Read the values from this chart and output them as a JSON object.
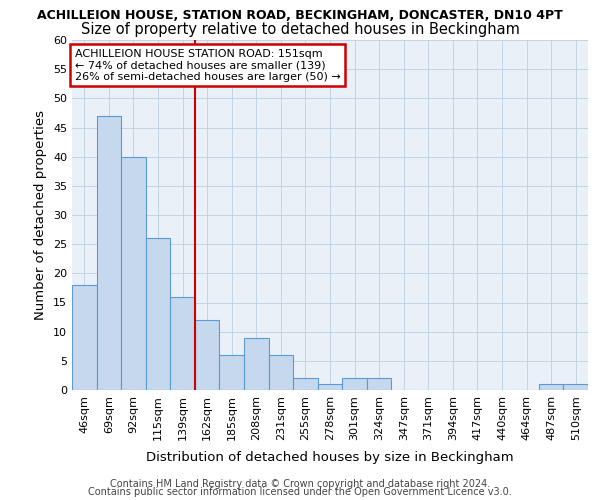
{
  "title1": "ACHILLEION HOUSE, STATION ROAD, BECKINGHAM, DONCASTER, DN10 4PT",
  "title2": "Size of property relative to detached houses in Beckingham",
  "xlabel": "Distribution of detached houses by size in Beckingham",
  "ylabel": "Number of detached properties",
  "categories": [
    "46sqm",
    "69sqm",
    "92sqm",
    "115sqm",
    "139sqm",
    "162sqm",
    "185sqm",
    "208sqm",
    "231sqm",
    "255sqm",
    "278sqm",
    "301sqm",
    "324sqm",
    "347sqm",
    "371sqm",
    "394sqm",
    "417sqm",
    "440sqm",
    "464sqm",
    "487sqm",
    "510sqm"
  ],
  "values": [
    18,
    47,
    40,
    26,
    16,
    12,
    6,
    9,
    6,
    2,
    1,
    2,
    2,
    0,
    0,
    0,
    0,
    0,
    0,
    1,
    1
  ],
  "bar_color": "#c5d8ed",
  "bar_edge_color": "#5b9bd5",
  "vline_x": 4.5,
  "vline_color": "#cc0000",
  "annotation_line1": "ACHILLEION HOUSE STATION ROAD: 151sqm",
  "annotation_line2": "← 74% of detached houses are smaller (139)",
  "annotation_line3": "26% of semi-detached houses are larger (50) →",
  "annotation_box_color": "#ffffff",
  "annotation_box_edge": "#cc0000",
  "ylim": [
    0,
    60
  ],
  "yticks": [
    0,
    5,
    10,
    15,
    20,
    25,
    30,
    35,
    40,
    45,
    50,
    55,
    60
  ],
  "footer1": "Contains HM Land Registry data © Crown copyright and database right 2024.",
  "footer2": "Contains public sector information licensed under the Open Government Licence v3.0.",
  "plot_bg_color": "#eaf0f8",
  "title1_fontsize": 9.0,
  "title2_fontsize": 10.5,
  "axis_label_fontsize": 9.5,
  "tick_fontsize": 8.0,
  "footer_fontsize": 7.0,
  "annotation_fontsize": 8.0
}
